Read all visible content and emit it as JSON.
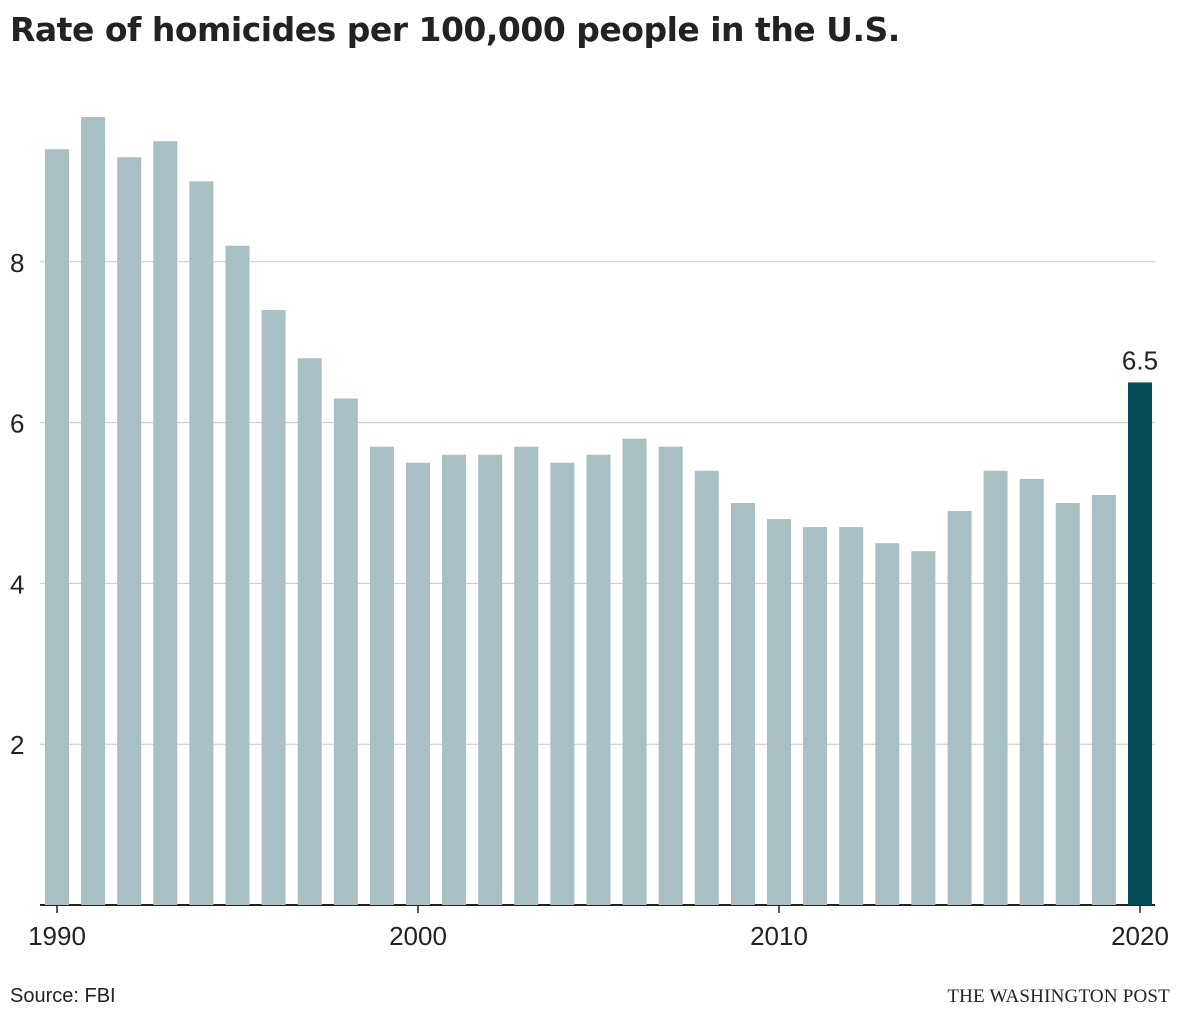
{
  "chart_data": {
    "type": "bar",
    "title": "Rate of homicides per 100,000 people in the U.S.",
    "xlabel": "",
    "ylabel": "",
    "categories": [
      1990,
      1991,
      1992,
      1993,
      1994,
      1995,
      1996,
      1997,
      1998,
      1999,
      2000,
      2001,
      2002,
      2003,
      2004,
      2005,
      2006,
      2007,
      2008,
      2009,
      2010,
      2011,
      2012,
      2013,
      2014,
      2015,
      2016,
      2017,
      2018,
      2019,
      2020
    ],
    "values": [
      9.4,
      9.8,
      9.3,
      9.5,
      9.0,
      8.2,
      7.4,
      6.8,
      6.3,
      5.7,
      5.5,
      5.6,
      5.6,
      5.7,
      5.5,
      5.6,
      5.8,
      5.7,
      5.4,
      5.0,
      4.8,
      4.7,
      4.7,
      4.5,
      4.4,
      4.9,
      5.4,
      5.3,
      5.0,
      5.1,
      6.5
    ],
    "ylim": [
      0,
      10
    ],
    "yticks": [
      2,
      4,
      6,
      8
    ],
    "xtick_labels": [
      "1990",
      "2000",
      "2010",
      "2020"
    ],
    "highlight": {
      "category": 2020,
      "label": "6.5"
    },
    "grid": "horizontal",
    "colors": {
      "bar": "#a8bfc3",
      "highlight": "#054d56",
      "grid": "#c8c8c8",
      "axis": "#222222"
    }
  },
  "footer": {
    "source": "Source: FBI",
    "credit": "THE WASHINGTON POST"
  }
}
